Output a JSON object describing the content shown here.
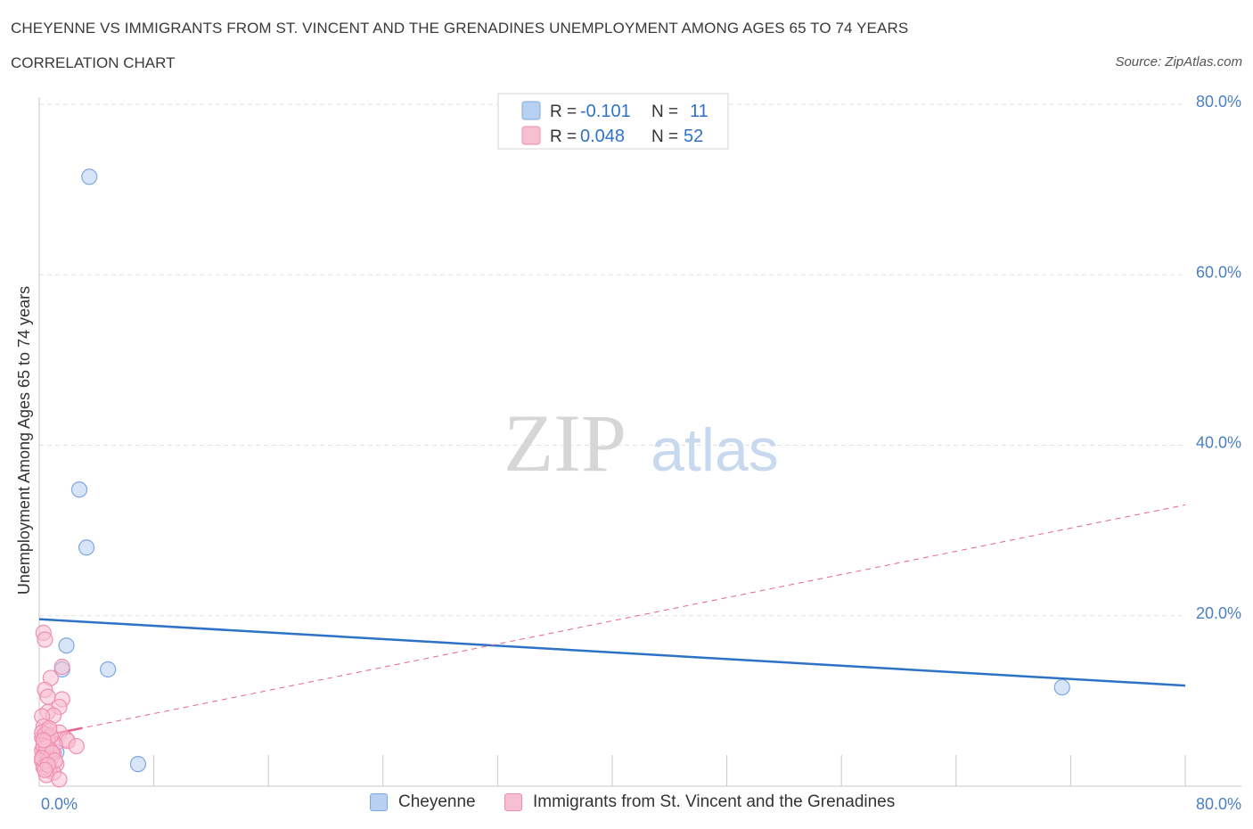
{
  "title": "CHEYENNE VS IMMIGRANTS FROM ST. VINCENT AND THE GRENADINES UNEMPLOYMENT AMONG AGES 65 TO 74 YEARS",
  "subtitle": "CORRELATION CHART",
  "source": "Source: ZipAtlas.com",
  "watermark": {
    "zip": "ZIP",
    "atlas": "atlas"
  },
  "colors": {
    "blue_fill": "#b8d0f2",
    "blue_stroke": "#7ea7e0",
    "blue_line": "#2e72c8",
    "pink_fill": "#f7c0d1",
    "pink_stroke": "#ef8fb0",
    "pink_line": "#e8638f",
    "axis_label": "#4a7fc4",
    "grid": "#e1e1e1"
  },
  "legend": {
    "r_label": "R =",
    "n_label": "N =",
    "rows": [
      {
        "r": "-0.101",
        "n": "11"
      },
      {
        "r": "0.048",
        "n": "52"
      }
    ]
  },
  "chart_data": {
    "type": "scatter",
    "title": "CHEYENNE VS IMMIGRANTS FROM ST. VINCENT AND THE GRENADINES UNEMPLOYMENT AMONG AGES 65 TO 74 YEARS",
    "xlabel": "",
    "ylabel": "Unemployment Among Ages 65 to 74 years",
    "xlim": [
      0,
      80
    ],
    "ylim": [
      0,
      80
    ],
    "x_tick_labels": [
      "0.0%",
      "80.0%"
    ],
    "y_tick_labels": [
      "20.0%",
      "40.0%",
      "60.0%",
      "80.0%"
    ],
    "y_ticks": [
      20,
      40,
      60,
      80
    ],
    "grid": true,
    "legend_position": "top-center",
    "series": [
      {
        "name": "Cheyenne",
        "color": "blue",
        "points": [
          [
            3.5,
            71.5
          ],
          [
            2.8,
            34.8
          ],
          [
            3.3,
            28.0
          ],
          [
            1.9,
            16.5
          ],
          [
            1.6,
            13.7
          ],
          [
            4.8,
            13.7
          ],
          [
            0.4,
            5.8
          ],
          [
            1.2,
            4.0
          ],
          [
            6.9,
            2.6
          ],
          [
            71.4,
            11.6
          ],
          [
            0.7,
            3.5
          ]
        ],
        "trend": {
          "x": [
            0,
            80
          ],
          "y": [
            19.6,
            11.8
          ],
          "style": "solid"
        }
      },
      {
        "name": "Immigrants from St. Vincent and the Grenadines",
        "color": "pink",
        "points": [
          [
            0.3,
            18.0
          ],
          [
            0.4,
            17.2
          ],
          [
            1.6,
            14.0
          ],
          [
            0.8,
            12.7
          ],
          [
            0.4,
            11.3
          ],
          [
            0.6,
            10.5
          ],
          [
            1.6,
            10.2
          ],
          [
            1.4,
            9.3
          ],
          [
            0.6,
            8.7
          ],
          [
            1.0,
            8.3
          ],
          [
            0.2,
            8.2
          ],
          [
            0.3,
            7.0
          ],
          [
            0.7,
            6.5
          ],
          [
            1.4,
            6.3
          ],
          [
            0.5,
            6.0
          ],
          [
            0.2,
            5.7
          ],
          [
            1.9,
            5.5
          ],
          [
            2.0,
            5.3
          ],
          [
            0.4,
            5.2
          ],
          [
            0.9,
            5.0
          ],
          [
            1.1,
            4.9
          ],
          [
            2.6,
            4.7
          ],
          [
            0.3,
            4.5
          ],
          [
            0.7,
            4.4
          ],
          [
            0.2,
            4.2
          ],
          [
            0.5,
            4.0
          ],
          [
            1.0,
            3.8
          ],
          [
            0.3,
            3.6
          ],
          [
            0.6,
            3.4
          ],
          [
            0.8,
            3.2
          ],
          [
            0.2,
            3.0
          ],
          [
            0.5,
            2.8
          ],
          [
            1.2,
            2.6
          ],
          [
            0.4,
            2.4
          ],
          [
            0.3,
            2.2
          ],
          [
            0.7,
            2.0
          ],
          [
            1.0,
            1.6
          ],
          [
            0.5,
            1.3
          ],
          [
            1.4,
            0.8
          ],
          [
            0.2,
            6.3
          ],
          [
            0.4,
            6.1
          ],
          [
            0.6,
            5.6
          ],
          [
            0.8,
            5.9
          ],
          [
            0.3,
            4.8
          ],
          [
            0.5,
            4.6
          ],
          [
            0.9,
            3.9
          ],
          [
            0.2,
            3.3
          ],
          [
            1.1,
            3.0
          ],
          [
            0.6,
            2.5
          ],
          [
            0.4,
            1.9
          ],
          [
            0.7,
            6.8
          ],
          [
            0.3,
            5.4
          ]
        ],
        "trend": {
          "x": [
            0,
            80
          ],
          "y": [
            5.8,
            33.0
          ],
          "style": "dashed"
        }
      }
    ]
  }
}
